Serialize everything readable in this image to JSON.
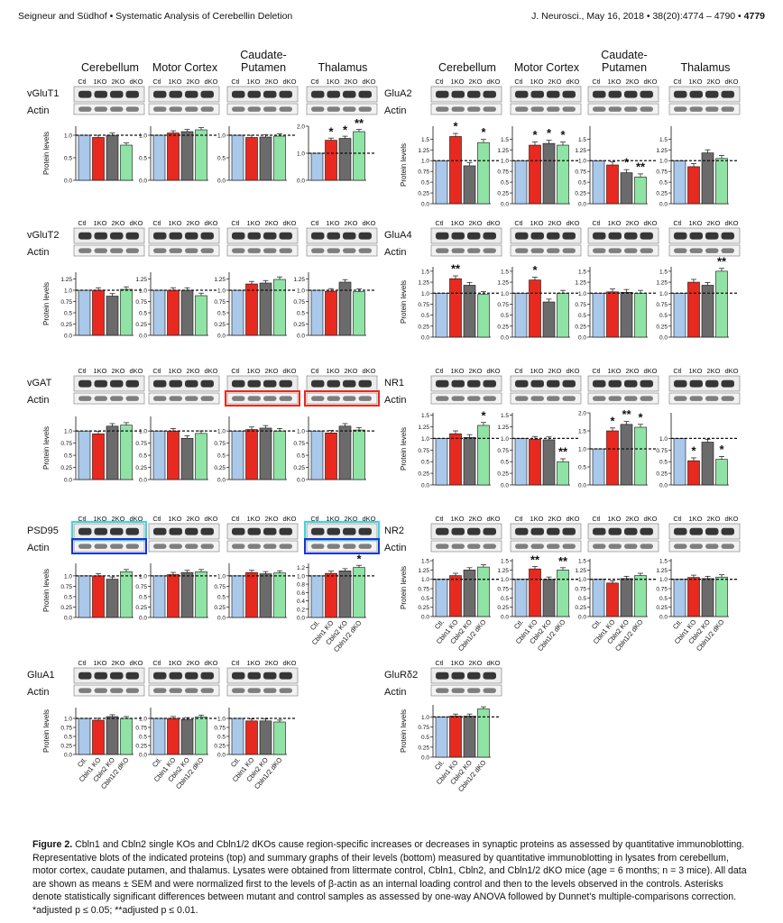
{
  "header": {
    "left": "Seigneur and Südhof • Systematic Analysis of Cerebellin Deletion",
    "right_prefix": "J. Neurosci., May 16, 2018 • 38(20):4774 – 4790 •",
    "page": "4779"
  },
  "regions": [
    "Cerebellum",
    "Motor Cortex",
    "Caudate-Putamen",
    "Thalamus"
  ],
  "lane_labels": [
    "Ctl",
    "1KO",
    "2KO",
    "dKO"
  ],
  "group_labels": [
    "Ctl.",
    "Cbln1 KO",
    "Cbln2 KO",
    "Cbln1/2 dKO"
  ],
  "actin_label": "Actin",
  "ylabel": "Protein levels",
  "colors": {
    "ctl": "#a9c8ea",
    "ko1": "#e8291f",
    "ko2": "#6b6b6b",
    "dko": "#8fe3a4"
  },
  "chart_data": [
    {
      "type": "bar",
      "protein": "vGluT1",
      "region": "Cerebellum",
      "categories": [
        "Ctl",
        "1KO",
        "2KO",
        "dKO"
      ],
      "values": [
        1.0,
        0.95,
        1.0,
        0.78
      ],
      "ylim": [
        0,
        1.2
      ],
      "yticks": [
        0.0,
        0.5,
        1.0
      ],
      "stars": [
        "",
        "",
        "",
        ""
      ]
    },
    {
      "type": "bar",
      "protein": "vGluT1",
      "region": "Motor Cortex",
      "categories": [
        "Ctl",
        "1KO",
        "2KO",
        "dKO"
      ],
      "values": [
        1.0,
        1.05,
        1.08,
        1.12
      ],
      "ylim": [
        0,
        1.2
      ],
      "yticks": [
        0.0,
        0.5,
        1.0
      ],
      "stars": [
        "",
        "",
        "",
        ""
      ]
    },
    {
      "type": "bar",
      "protein": "vGluT1",
      "region": "Caudate-Putamen",
      "categories": [
        "Ctl",
        "1KO",
        "2KO",
        "dKO"
      ],
      "values": [
        1.0,
        0.95,
        0.96,
        0.98
      ],
      "ylim": [
        0,
        1.2
      ],
      "yticks": [
        0.0,
        0.5,
        1.0
      ],
      "stars": [
        "",
        "",
        "",
        ""
      ]
    },
    {
      "type": "bar",
      "protein": "vGluT1",
      "region": "Thalamus",
      "categories": [
        "Ctl",
        "1KO",
        "2KO",
        "dKO"
      ],
      "values": [
        1.0,
        1.48,
        1.55,
        1.8
      ],
      "ylim": [
        0,
        2.0
      ],
      "yticks": [
        0.0,
        1.0,
        2.0
      ],
      "stars": [
        "",
        "*",
        "*",
        "**"
      ]
    },
    {
      "type": "bar",
      "protein": "vGluT2",
      "region": "Cerebellum",
      "categories": [
        "Ctl",
        "1KO",
        "2KO",
        "dKO"
      ],
      "values": [
        1.0,
        1.0,
        0.87,
        1.02
      ],
      "ylim": [
        0,
        1.4
      ],
      "yticks": [
        0.0,
        0.25,
        0.5,
        0.75,
        1.0,
        1.25
      ],
      "stars": [
        "",
        "",
        "",
        ""
      ]
    },
    {
      "type": "bar",
      "protein": "vGluT2",
      "region": "Motor Cortex",
      "categories": [
        "Ctl",
        "1KO",
        "2KO",
        "dKO"
      ],
      "values": [
        1.0,
        1.0,
        1.0,
        0.88
      ],
      "ylim": [
        0,
        1.4
      ],
      "yticks": [
        0.0,
        0.25,
        0.5,
        0.75,
        1.0,
        1.25
      ],
      "stars": [
        "",
        "",
        "",
        ""
      ]
    },
    {
      "type": "bar",
      "protein": "vGluT2",
      "region": "Caudate-Putamen",
      "categories": [
        "Ctl",
        "1KO",
        "2KO",
        "dKO"
      ],
      "values": [
        1.0,
        1.14,
        1.16,
        1.24
      ],
      "ylim": [
        0,
        1.4
      ],
      "yticks": [
        0.0,
        0.25,
        0.5,
        0.75,
        1.0,
        1.25
      ],
      "stars": [
        "",
        "",
        "",
        ""
      ]
    },
    {
      "type": "bar",
      "protein": "vGluT2",
      "region": "Thalamus",
      "categories": [
        "Ctl",
        "1KO",
        "2KO",
        "dKO"
      ],
      "values": [
        1.0,
        0.98,
        1.18,
        0.97
      ],
      "ylim": [
        0,
        1.4
      ],
      "yticks": [
        0.0,
        0.25,
        0.5,
        0.75,
        1.0,
        1.25
      ],
      "stars": [
        "",
        "",
        "",
        ""
      ]
    },
    {
      "type": "bar",
      "protein": "vGAT",
      "region": "Cerebellum",
      "categories": [
        "Ctl",
        "1KO",
        "2KO",
        "dKO"
      ],
      "values": [
        1.0,
        0.94,
        1.1,
        1.12
      ],
      "ylim": [
        0,
        1.3
      ],
      "yticks": [
        0.0,
        0.25,
        0.5,
        0.75,
        1.0
      ],
      "stars": [
        "",
        "",
        "",
        ""
      ]
    },
    {
      "type": "bar",
      "protein": "vGAT",
      "region": "Motor Cortex",
      "categories": [
        "Ctl",
        "1KO",
        "2KO",
        "dKO"
      ],
      "values": [
        1.0,
        1.0,
        0.85,
        0.95
      ],
      "ylim": [
        0,
        1.3
      ],
      "yticks": [
        0.0,
        0.25,
        0.5,
        0.75,
        1.0
      ],
      "stars": [
        "",
        "",
        "",
        ""
      ]
    },
    {
      "type": "bar",
      "protein": "vGAT",
      "region": "Caudate-Putamen",
      "categories": [
        "Ctl",
        "1KO",
        "2KO",
        "dKO"
      ],
      "values": [
        1.0,
        1.03,
        1.06,
        1.0
      ],
      "ylim": [
        0,
        1.3
      ],
      "yticks": [
        0.0,
        0.25,
        0.5,
        0.75,
        1.0
      ],
      "stars": [
        "",
        "",
        "",
        ""
      ]
    },
    {
      "type": "bar",
      "protein": "vGAT",
      "region": "Thalamus",
      "categories": [
        "Ctl",
        "1KO",
        "2KO",
        "dKO"
      ],
      "values": [
        1.0,
        0.96,
        1.1,
        1.02
      ],
      "ylim": [
        0,
        1.3
      ],
      "yticks": [
        0.0,
        0.25,
        0.5,
        0.75,
        1.0
      ],
      "stars": [
        "",
        "",
        "",
        ""
      ]
    },
    {
      "type": "bar",
      "protein": "PSD95",
      "region": "Cerebellum",
      "categories": [
        "Ctl",
        "1KO",
        "2KO",
        "dKO"
      ],
      "values": [
        1.0,
        1.0,
        0.92,
        1.1
      ],
      "ylim": [
        0,
        1.3
      ],
      "yticks": [
        0.0,
        0.25,
        0.5,
        0.75,
        1.0
      ],
      "stars": [
        "",
        "",
        "",
        ""
      ]
    },
    {
      "type": "bar",
      "protein": "PSD95",
      "region": "Motor Cortex",
      "categories": [
        "Ctl",
        "1KO",
        "2KO",
        "dKO"
      ],
      "values": [
        1.0,
        1.03,
        1.08,
        1.1
      ],
      "ylim": [
        0,
        1.3
      ],
      "yticks": [
        0.0,
        0.25,
        0.5,
        0.75,
        1.0
      ],
      "stars": [
        "",
        "",
        "",
        ""
      ]
    },
    {
      "type": "bar",
      "protein": "PSD95",
      "region": "Caudate-Putamen",
      "categories": [
        "Ctl",
        "1KO",
        "2KO",
        "dKO"
      ],
      "values": [
        1.0,
        1.08,
        1.05,
        1.07
      ],
      "ylim": [
        0,
        1.3
      ],
      "yticks": [
        0.0,
        0.25,
        0.5,
        0.75,
        1.0
      ],
      "stars": [
        "",
        "",
        "",
        ""
      ]
    },
    {
      "type": "bar",
      "protein": "PSD95",
      "region": "Thalamus",
      "categories": [
        "Ctl",
        "1KO",
        "2KO",
        "dKO"
      ],
      "values": [
        1.0,
        1.06,
        1.12,
        1.2
      ],
      "ylim": [
        0,
        1.3
      ],
      "yticks": [
        0.0,
        0.2,
        0.4,
        0.6,
        0.8,
        1.0,
        1.2
      ],
      "stars": [
        "",
        "",
        "",
        "*"
      ]
    },
    {
      "type": "bar",
      "protein": "GluA1",
      "region": "Cerebellum",
      "categories": [
        "Ctl.",
        "Cbln1 KO",
        "Cbln2 KO",
        "Cbln1/2 dKO"
      ],
      "values": [
        1.0,
        0.95,
        1.05,
        1.0
      ],
      "ylim": [
        0,
        1.3
      ],
      "yticks": [
        0.0,
        0.25,
        0.5,
        0.75,
        1.0
      ],
      "stars": [
        "",
        "",
        "",
        ""
      ]
    },
    {
      "type": "bar",
      "protein": "GluA1",
      "region": "Motor Cortex",
      "categories": [
        "Ctl.",
        "Cbln1 KO",
        "Cbln2 KO",
        "Cbln1/2 dKO"
      ],
      "values": [
        1.0,
        1.0,
        0.97,
        1.04
      ],
      "ylim": [
        0,
        1.3
      ],
      "yticks": [
        0.0,
        0.25,
        0.5,
        0.75,
        1.0
      ],
      "stars": [
        "",
        "",
        "",
        ""
      ]
    },
    {
      "type": "bar",
      "protein": "GluA1",
      "region": "Caudate-Putamen",
      "categories": [
        "Ctl.",
        "Cbln1 KO",
        "Cbln2 KO",
        "Cbln1/2 dKO"
      ],
      "values": [
        1.0,
        0.93,
        0.93,
        0.9
      ],
      "ylim": [
        0,
        1.3
      ],
      "yticks": [
        0.0,
        0.25,
        0.5,
        0.75,
        1.0
      ],
      "stars": [
        "",
        "",
        "",
        ""
      ]
    },
    {
      "type": "bar",
      "protein": "GluA2",
      "region": "Cerebellum",
      "categories": [
        "Ctl",
        "1KO",
        "2KO",
        "dKO"
      ],
      "values": [
        1.0,
        1.56,
        0.88,
        1.42
      ],
      "ylim": [
        0,
        1.8
      ],
      "yticks": [
        0.0,
        0.25,
        0.5,
        0.75,
        1.0,
        1.25,
        1.5
      ],
      "stars": [
        "",
        "*",
        "",
        "*"
      ]
    },
    {
      "type": "bar",
      "protein": "GluA2",
      "region": "Motor Cortex",
      "categories": [
        "Ctl",
        "1KO",
        "2KO",
        "dKO"
      ],
      "values": [
        1.0,
        1.36,
        1.4,
        1.36
      ],
      "ylim": [
        0,
        1.8
      ],
      "yticks": [
        0.0,
        0.25,
        0.5,
        0.75,
        1.0,
        1.25,
        1.5
      ],
      "stars": [
        "",
        "*",
        "*",
        "*"
      ]
    },
    {
      "type": "bar",
      "protein": "GluA2",
      "region": "Caudate-Putamen",
      "categories": [
        "Ctl",
        "1KO",
        "2KO",
        "dKO"
      ],
      "values": [
        1.0,
        0.9,
        0.72,
        0.62
      ],
      "ylim": [
        0,
        1.8
      ],
      "yticks": [
        0.0,
        0.25,
        0.5,
        0.75,
        1.0,
        1.25,
        1.5
      ],
      "stars": [
        "",
        "",
        "*",
        "**"
      ]
    },
    {
      "type": "bar",
      "protein": "GluA2",
      "region": "Thalamus",
      "categories": [
        "Ctl",
        "1KO",
        "2KO",
        "dKO"
      ],
      "values": [
        1.0,
        0.86,
        1.18,
        1.05
      ],
      "ylim": [
        0,
        1.8
      ],
      "yticks": [
        0.0,
        0.25,
        0.5,
        0.75,
        1.0,
        1.25,
        1.5
      ],
      "stars": [
        "",
        "",
        "",
        ""
      ]
    },
    {
      "type": "bar",
      "protein": "GluA4",
      "region": "Cerebellum",
      "categories": [
        "Ctl",
        "1KO",
        "2KO",
        "dKO"
      ],
      "values": [
        1.0,
        1.33,
        1.18,
        0.97
      ],
      "ylim": [
        0,
        1.6
      ],
      "yticks": [
        0.0,
        0.25,
        0.5,
        0.75,
        1.0,
        1.25,
        1.5
      ],
      "stars": [
        "",
        "**",
        "",
        ""
      ]
    },
    {
      "type": "bar",
      "protein": "GluA4",
      "region": "Motor Cortex",
      "categories": [
        "Ctl",
        "1KO",
        "2KO",
        "dKO"
      ],
      "values": [
        1.0,
        1.3,
        0.8,
        1.0
      ],
      "ylim": [
        0,
        1.6
      ],
      "yticks": [
        0.0,
        0.25,
        0.5,
        0.75,
        1.0,
        1.25,
        1.5
      ],
      "stars": [
        "",
        "*",
        "",
        ""
      ]
    },
    {
      "type": "bar",
      "protein": "GluA4",
      "region": "Caudate-Putamen",
      "categories": [
        "Ctl",
        "1KO",
        "2KO",
        "dKO"
      ],
      "values": [
        1.0,
        1.03,
        1.02,
        1.0
      ],
      "ylim": [
        0,
        1.6
      ],
      "yticks": [
        0.0,
        0.25,
        0.5,
        0.75,
        1.0,
        1.25,
        1.5
      ],
      "stars": [
        "",
        "",
        "",
        ""
      ]
    },
    {
      "type": "bar",
      "protein": "GluA4",
      "region": "Thalamus",
      "categories": [
        "Ctl",
        "1KO",
        "2KO",
        "dKO"
      ],
      "values": [
        1.0,
        1.25,
        1.18,
        1.5
      ],
      "ylim": [
        0,
        1.6
      ],
      "yticks": [
        0.0,
        0.25,
        0.5,
        0.75,
        1.0,
        1.25,
        1.5
      ],
      "stars": [
        "",
        "",
        "",
        "**"
      ]
    },
    {
      "type": "bar",
      "protein": "NR1",
      "region": "Cerebellum",
      "categories": [
        "Ctl",
        "1KO",
        "2KO",
        "dKO"
      ],
      "values": [
        1.0,
        1.1,
        1.02,
        1.28
      ],
      "ylim": [
        0,
        1.55
      ],
      "yticks": [
        0.0,
        0.25,
        0.5,
        0.75,
        1.0,
        1.25,
        1.5
      ],
      "stars": [
        "",
        "",
        "",
        "*"
      ]
    },
    {
      "type": "bar",
      "protein": "NR1",
      "region": "Motor Cortex",
      "categories": [
        "Ctl",
        "1KO",
        "2KO",
        "dKO"
      ],
      "values": [
        1.0,
        0.98,
        0.97,
        0.5
      ],
      "ylim": [
        0,
        1.55
      ],
      "yticks": [
        0.0,
        0.25,
        0.5,
        0.75,
        1.0,
        1.25,
        1.5
      ],
      "stars": [
        "",
        "",
        "",
        "**"
      ]
    },
    {
      "type": "bar",
      "protein": "NR1",
      "region": "Caudate-Putamen",
      "categories": [
        "Ctl",
        "1KO",
        "2KO",
        "dKO"
      ],
      "values": [
        1.0,
        1.5,
        1.68,
        1.6
      ],
      "ylim": [
        0,
        2.0
      ],
      "yticks": [
        0.0,
        0.5,
        1.0,
        1.5,
        2.0
      ],
      "stars": [
        "",
        "*",
        "**",
        "*"
      ]
    },
    {
      "type": "bar",
      "protein": "NR1",
      "region": "Thalamus",
      "categories": [
        "Ctl",
        "1KO",
        "2KO",
        "dKO"
      ],
      "values": [
        1.0,
        0.52,
        0.92,
        0.55
      ],
      "ylim": [
        0,
        1.55
      ],
      "yticks": [
        0.0,
        0.25,
        0.5,
        0.75,
        1.0
      ],
      "stars": [
        "",
        "*",
        "",
        "*"
      ]
    },
    {
      "type": "bar",
      "protein": "NR2",
      "region": "Cerebellum",
      "categories": [
        "Ctl.",
        "Cbln1 KO",
        "Cbln2 KO",
        "Cbln1/2 dKO"
      ],
      "values": [
        1.0,
        1.1,
        1.25,
        1.33
      ],
      "ylim": [
        0,
        1.55
      ],
      "yticks": [
        0.0,
        0.25,
        0.5,
        0.75,
        1.0,
        1.25,
        1.5
      ],
      "stars": [
        "",
        "",
        "",
        ""
      ]
    },
    {
      "type": "bar",
      "protein": "NR2",
      "region": "Motor Cortex",
      "categories": [
        "Ctl.",
        "Cbln1 KO",
        "Cbln2 KO",
        "Cbln1/2 dKO"
      ],
      "values": [
        1.0,
        1.28,
        1.0,
        1.25
      ],
      "ylim": [
        0,
        1.55
      ],
      "yticks": [
        0.0,
        0.25,
        0.5,
        0.75,
        1.0,
        1.25,
        1.5
      ],
      "stars": [
        "",
        "**",
        "",
        "**"
      ]
    },
    {
      "type": "bar",
      "protein": "NR2",
      "region": "Caudate-Putamen",
      "categories": [
        "Ctl.",
        "Cbln1 KO",
        "Cbln2 KO",
        "Cbln1/2 dKO"
      ],
      "values": [
        1.0,
        0.9,
        1.02,
        1.1
      ],
      "ylim": [
        0,
        1.55
      ],
      "yticks": [
        0.0,
        0.25,
        0.5,
        0.75,
        1.0,
        1.25,
        1.5
      ],
      "stars": [
        "",
        "",
        "",
        ""
      ]
    },
    {
      "type": "bar",
      "protein": "NR2",
      "region": "Thalamus",
      "categories": [
        "Ctl.",
        "Cbln1 KO",
        "Cbln2 KO",
        "Cbln1/2 dKO"
      ],
      "values": [
        1.0,
        1.05,
        1.02,
        1.06
      ],
      "ylim": [
        0,
        1.55
      ],
      "yticks": [
        0.0,
        0.25,
        0.5,
        0.75,
        1.0,
        1.25,
        1.5
      ],
      "stars": [
        "",
        "",
        "",
        ""
      ]
    },
    {
      "type": "bar",
      "protein": "GluRδ2",
      "region": "Cerebellum",
      "categories": [
        "Ctl.",
        "Cbln1 KO",
        "Cbln2 KO",
        "Cbln1/2 dKO"
      ],
      "values": [
        1.0,
        1.02,
        1.02,
        1.2
      ],
      "ylim": [
        0,
        1.3
      ],
      "yticks": [
        0.0,
        0.25,
        0.5,
        0.75,
        1.0
      ],
      "stars": [
        "",
        "",
        "",
        ""
      ]
    }
  ],
  "caption": {
    "label": "Figure 2.",
    "text": "Cbln1 and Cbln2 single KOs and Cbln1/2 dKOs cause region-specific increases or decreases in synaptic proteins as assessed by quantitative immunoblotting. Representative blots of the indicated proteins (top) and summary graphs of their levels (bottom) measured by quantitative immunoblotting in lysates from cerebellum, motor cortex, caudate putamen, and thalamus. Lysates were obtained from littermate control, Cbln1, Cbln2, and Cbln1/2 dKO mice (age = 6 months; n = 3 mice). All data are shown as means ± SEM and were normalized first to the levels of β-actin as an internal loading control and then to the levels observed in the controls. Asterisks denote statistically significant differences between mutant and control samples as assessed by one-way ANOVA followed by Dunnet's multiple-comparisons correction. *adjusted p ≤ 0.05; **adjusted p ≤ 0.01."
  }
}
